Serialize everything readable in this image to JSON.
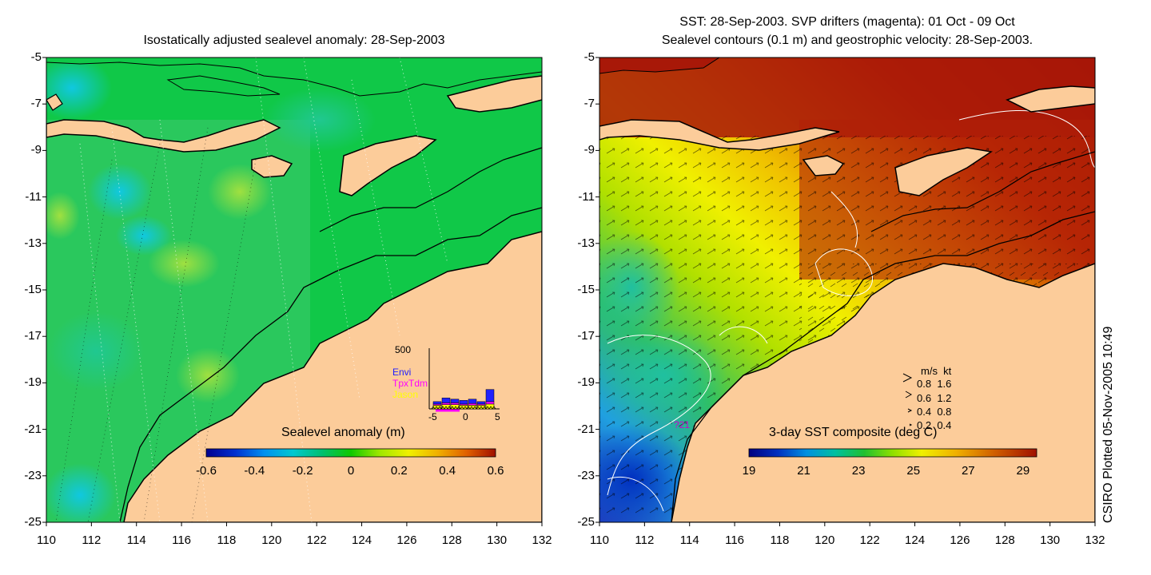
{
  "left_panel": {
    "title": "Isostatically adjusted sealevel anomaly: 28-Sep-2003",
    "colorbar": {
      "label": "Sealevel anomaly (m)",
      "ticks": [
        "-0.6",
        "-0.4",
        "-0.2",
        "0",
        "0.2",
        "0.4",
        "0.6"
      ],
      "range": [
        -0.6,
        0.6
      ],
      "colors": [
        "#000090",
        "#0030d0",
        "#0080f0",
        "#00c0e0",
        "#00d0a0",
        "#00c040",
        "#20d000",
        "#c0f000",
        "#f0f000",
        "#f0b000",
        "#e06000",
        "#b01000"
      ]
    },
    "inset": {
      "ymax_label": "500",
      "x_ticks": [
        "-5",
        "0",
        "5"
      ],
      "legend": [
        {
          "name": "Envi",
          "color": "#2020ff"
        },
        {
          "name": "TpxTdm",
          "color": "#ff00ff"
        },
        {
          "name": "Jason",
          "color": "#ffff00"
        }
      ],
      "bars_envi": [
        60,
        90,
        80,
        70,
        80,
        60,
        160
      ],
      "bars_tpx": [
        40,
        50,
        50,
        40,
        45,
        40,
        60
      ],
      "bars_jason": [
        30,
        35,
        35,
        30,
        30,
        30,
        40
      ]
    }
  },
  "right_panel": {
    "title_line1": "SST: 28-Sep-2003. SVP drifters (magenta): 01 Oct - 09 Oct",
    "title_line2": "Sealevel contours (0.1 m) and geostrophic velocity: 28-Sep-2003.",
    "colorbar": {
      "label": "3-day SST composite (deg C)",
      "ticks": [
        "19",
        "21",
        "23",
        "25",
        "27",
        "29"
      ],
      "range": [
        19,
        29.5
      ],
      "colors": [
        "#000080",
        "#0020c0",
        "#0070e0",
        "#00b0e0",
        "#00c0a0",
        "#00c050",
        "#40d000",
        "#b0e000",
        "#f0f000",
        "#f0c000",
        "#e08000",
        "#c04000",
        "#a01000"
      ]
    },
    "velocity_key": {
      "header": "m/s  kt",
      "rows": [
        {
          "ms": "0.8",
          "kt": "1.6"
        },
        {
          "ms": "0.6",
          "kt": "1.2"
        },
        {
          "ms": "0.4",
          "kt": "0.8"
        },
        {
          "ms": "0.2",
          "kt": "0.4"
        }
      ]
    },
    "drifter_label": "?21"
  },
  "axes": {
    "lat_ticks": [
      "-5",
      "-7",
      "-9",
      "-11",
      "-13",
      "-15",
      "-17",
      "-19",
      "-21",
      "-23",
      "-25"
    ],
    "lon_ticks": [
      "110",
      "112",
      "114",
      "116",
      "118",
      "120",
      "122",
      "124",
      "126",
      "128",
      "130",
      "132"
    ],
    "lat_range": [
      -25,
      -5
    ],
    "lon_range": [
      110,
      132
    ]
  },
  "credit": "CSIRO Plotted 05-Nov-2005 10:49"
}
